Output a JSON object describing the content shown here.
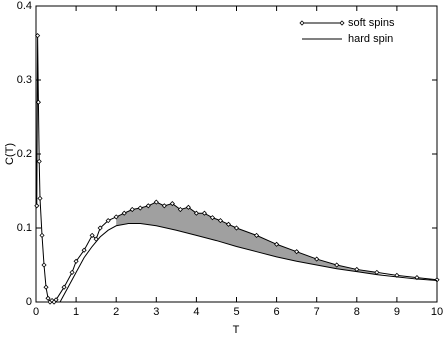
{
  "chart_data": {
    "type": "line",
    "xlabel": "T",
    "ylabel": "C(T)",
    "xlim": [
      0,
      10
    ],
    "ylim": [
      0,
      0.4
    ],
    "xticks": [
      0,
      1,
      2,
      3,
      4,
      5,
      6,
      7,
      8,
      9,
      10
    ],
    "yticks": [
      0,
      0.1,
      0.2,
      0.3,
      0.4
    ],
    "legend": "upper right",
    "series": [
      {
        "name": "soft spins",
        "color": "#000000",
        "markers": true,
        "x": [
          0.02,
          0.04,
          0.06,
          0.08,
          0.1,
          0.15,
          0.2,
          0.25,
          0.3,
          0.35,
          0.4,
          0.45,
          0.5,
          0.7,
          0.9,
          1.0,
          1.2,
          1.4,
          1.5,
          1.6,
          1.8,
          2.0,
          2.2,
          2.4,
          2.6,
          2.8,
          3.0,
          3.2,
          3.4,
          3.6,
          3.8,
          4.0,
          4.2,
          4.4,
          4.6,
          4.8,
          5.0,
          5.5,
          6.0,
          6.5,
          7.0,
          7.5,
          8.0,
          8.5,
          9.0,
          9.5,
          10
        ],
        "values": [
          0.13,
          0.36,
          0.27,
          0.19,
          0.14,
          0.09,
          0.05,
          0.02,
          0.005,
          0.0,
          0.002,
          0.0,
          0.003,
          0.02,
          0.04,
          0.055,
          0.07,
          0.09,
          0.085,
          0.1,
          0.11,
          0.115,
          0.12,
          0.125,
          0.127,
          0.13,
          0.135,
          0.13,
          0.133,
          0.125,
          0.128,
          0.12,
          0.12,
          0.114,
          0.11,
          0.105,
          0.1,
          0.09,
          0.078,
          0.068,
          0.058,
          0.05,
          0.044,
          0.04,
          0.036,
          0.033,
          0.03
        ]
      },
      {
        "name": "hard spin",
        "color": "#000000",
        "markers": false,
        "x": [
          0.6,
          0.8,
          1.0,
          1.2,
          1.4,
          1.6,
          1.8,
          2.0,
          2.3,
          2.6,
          3.0,
          3.5,
          4.0,
          4.5,
          5.0,
          5.5,
          6.0,
          6.5,
          7.0,
          7.5,
          8.0,
          8.5,
          9.0,
          9.5,
          10
        ],
        "values": [
          0.0,
          0.02,
          0.04,
          0.06,
          0.075,
          0.088,
          0.097,
          0.103,
          0.106,
          0.106,
          0.103,
          0.097,
          0.09,
          0.083,
          0.075,
          0.068,
          0.061,
          0.055,
          0.05,
          0.045,
          0.041,
          0.037,
          0.034,
          0.031,
          0.029
        ]
      }
    ]
  }
}
